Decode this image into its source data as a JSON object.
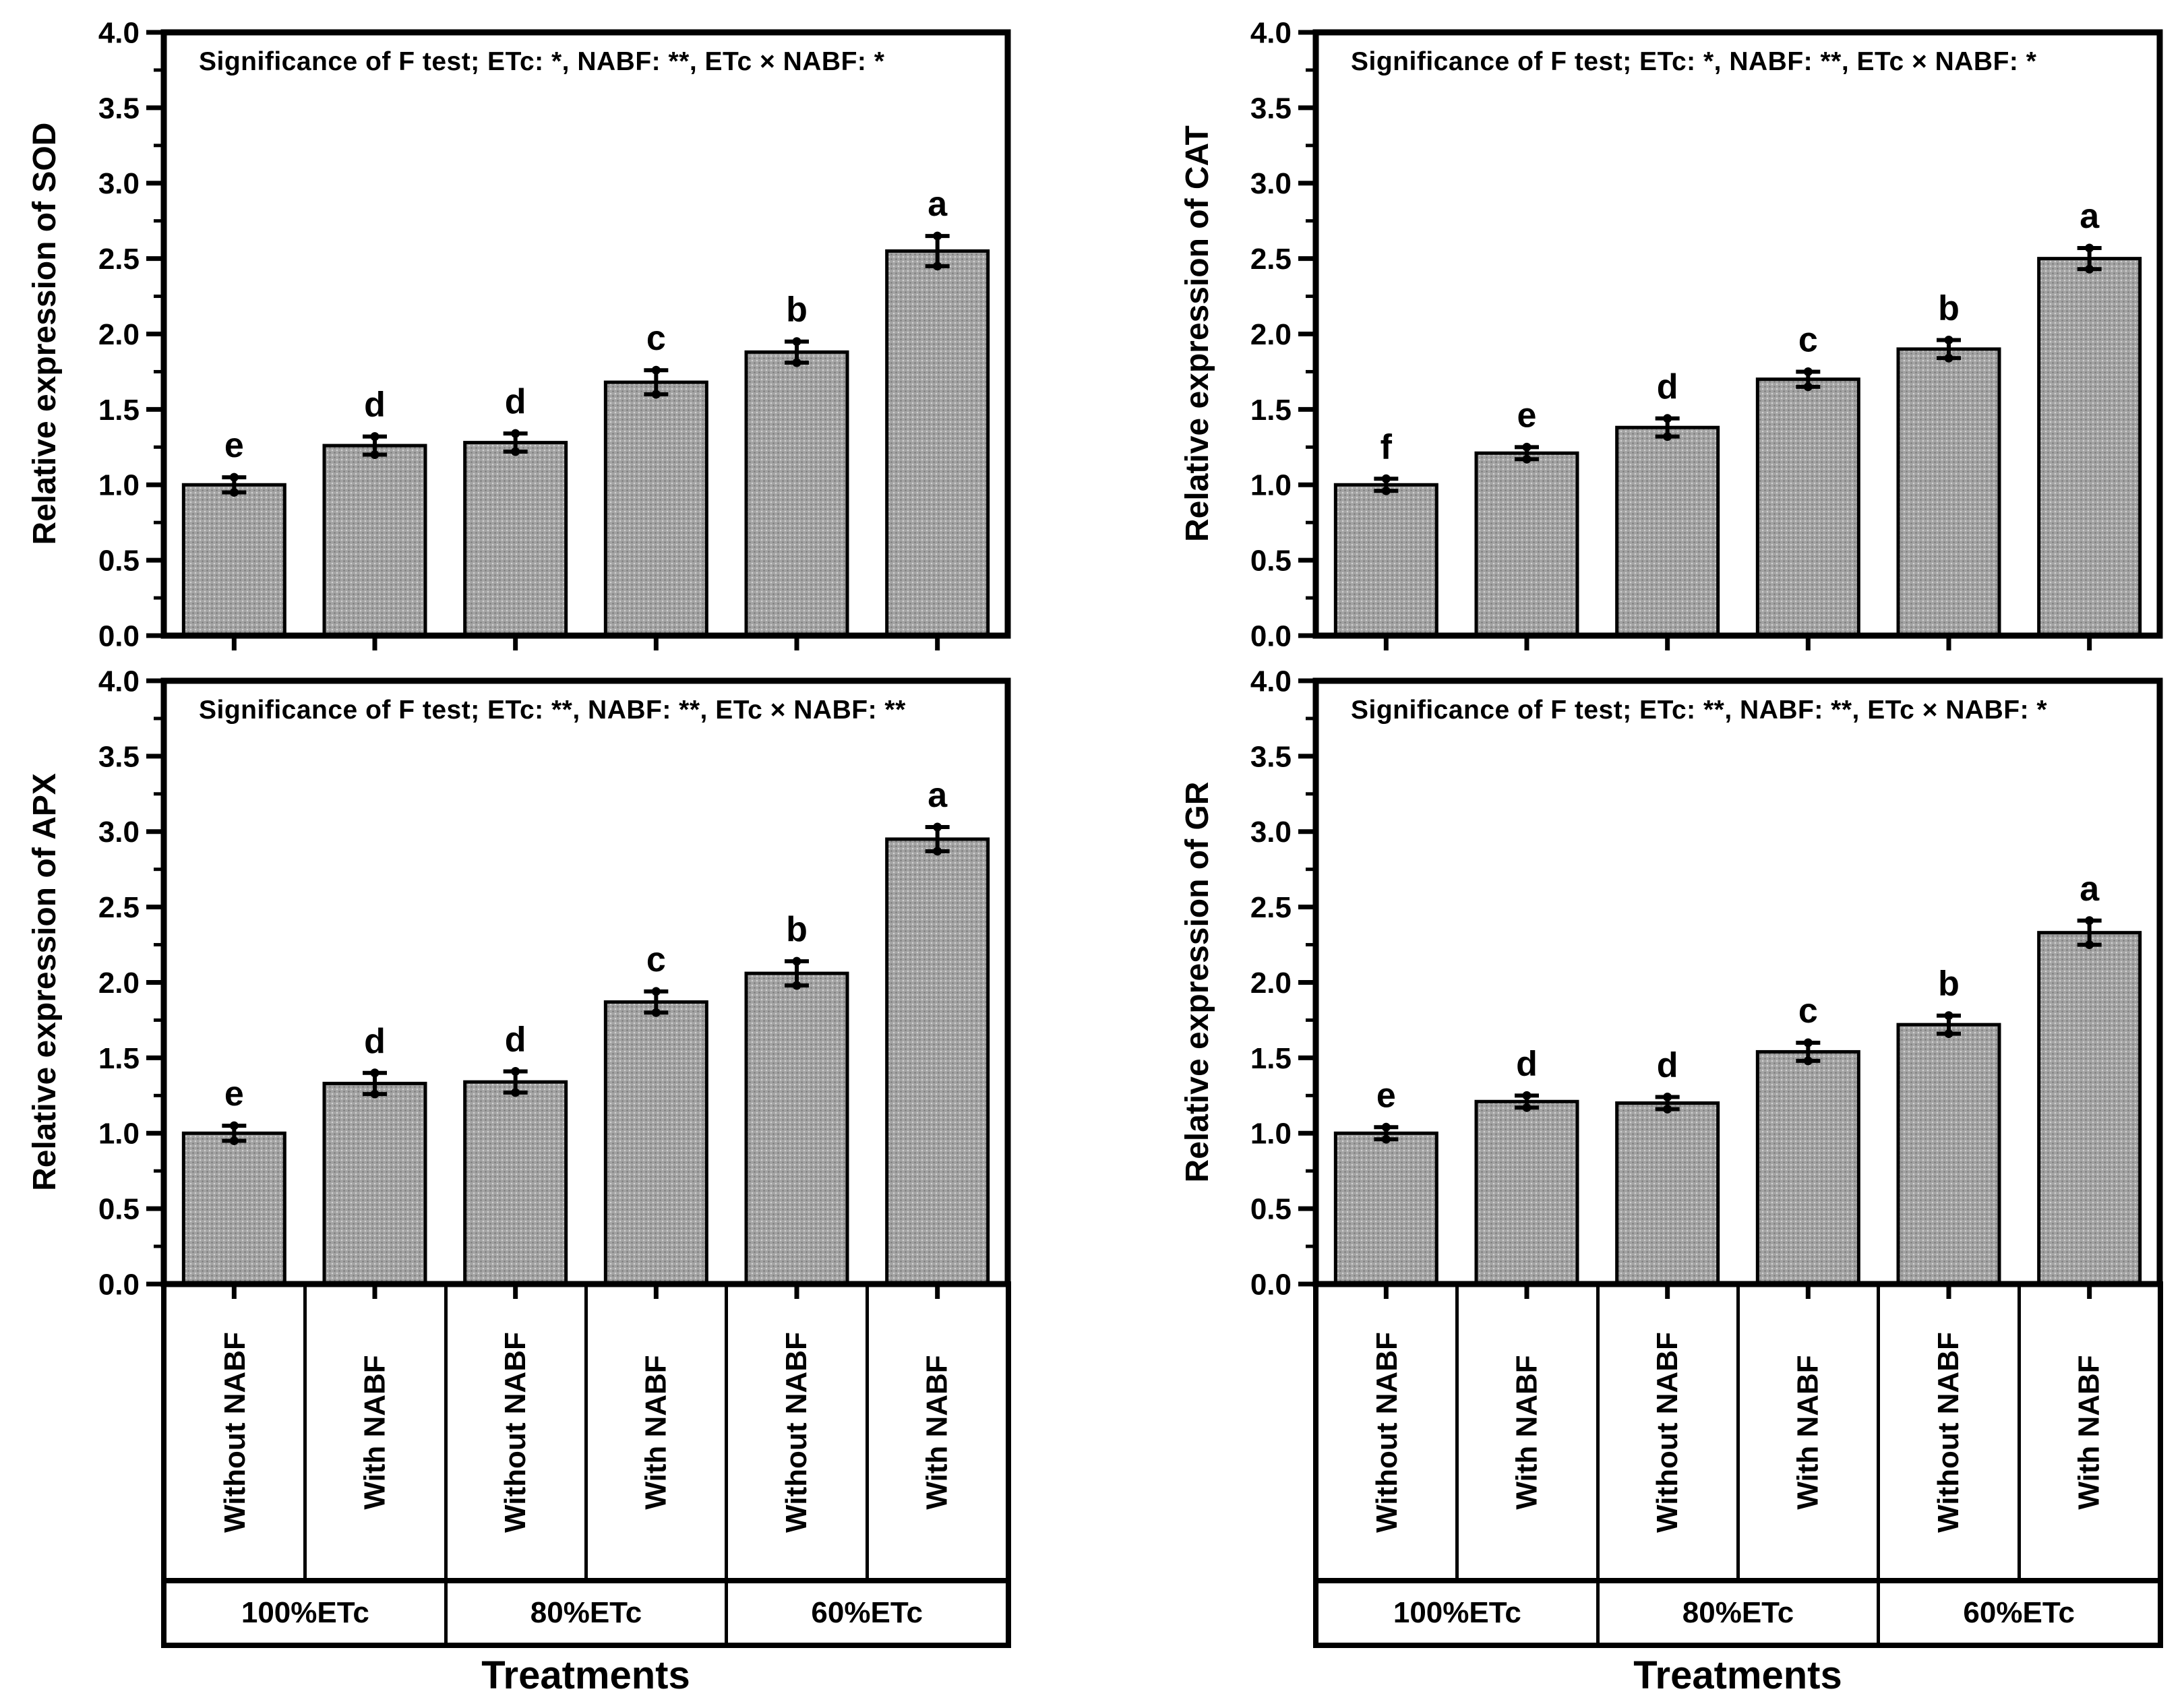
{
  "figure": {
    "x_axis_title": "Treatments",
    "bar_fill_color": "#a3a3a3",
    "bar_border_color": "#000000",
    "y_axis": {
      "min": 0,
      "max": 4,
      "major_step": 0.5,
      "minor_step": 0.25,
      "tick_labels": [
        "0.0",
        "0.5",
        "1.0",
        "1.5",
        "2.0",
        "2.5",
        "3.0",
        "3.5",
        "4.0"
      ]
    },
    "bar_labels": [
      "Without NABF",
      "With NABF",
      "Without NABF",
      "With NABF",
      "Without NABF",
      "With NABF"
    ],
    "group_labels": [
      "100%ETc",
      "80%ETc",
      "60%ETc"
    ]
  },
  "chart_data": [
    {
      "type": "bar",
      "id": "sod",
      "ylabel": "Relative expression of SOD",
      "xlabel": "Treatments",
      "significance": "Significance of F test; ETc: *, NABF: **, ETc × NABF: *",
      "categories": [
        "Without NABF",
        "With NABF",
        "Without NABF",
        "With NABF",
        "Without NABF",
        "With NABF"
      ],
      "group_labels": [
        "100%ETc",
        "80%ETc",
        "60%ETc"
      ],
      "values": [
        1.0,
        1.26,
        1.28,
        1.68,
        1.88,
        2.55
      ],
      "errors": [
        0.05,
        0.06,
        0.06,
        0.08,
        0.07,
        0.1
      ],
      "sig_letters": [
        "e",
        "d",
        "d",
        "c",
        "b",
        "a"
      ],
      "ylim": [
        0,
        4
      ],
      "grid": false
    },
    {
      "type": "bar",
      "id": "cat",
      "ylabel": "Relative expression of CAT",
      "xlabel": "Treatments",
      "significance": "Significance of F test; ETc: *, NABF: **, ETc × NABF: *",
      "categories": [
        "Without NABF",
        "With NABF",
        "Without NABF",
        "With NABF",
        "Without NABF",
        "With NABF"
      ],
      "group_labels": [
        "100%ETc",
        "80%ETc",
        "60%ETc"
      ],
      "values": [
        1.0,
        1.21,
        1.38,
        1.7,
        1.9,
        2.5
      ],
      "errors": [
        0.04,
        0.04,
        0.06,
        0.05,
        0.06,
        0.07
      ],
      "sig_letters": [
        "f",
        "e",
        "d",
        "c",
        "b",
        "a"
      ],
      "ylim": [
        0,
        4
      ],
      "grid": false
    },
    {
      "type": "bar",
      "id": "apx",
      "ylabel": "Relative expression of APX",
      "xlabel": "Treatments",
      "significance": "Significance of F test; ETc: **, NABF: **, ETc × NABF: **",
      "categories": [
        "Without NABF",
        "With NABF",
        "Without NABF",
        "With NABF",
        "Without NABF",
        "With NABF"
      ],
      "group_labels": [
        "100%ETc",
        "80%ETc",
        "60%ETc"
      ],
      "values": [
        1.0,
        1.33,
        1.34,
        1.87,
        2.06,
        2.95
      ],
      "errors": [
        0.05,
        0.07,
        0.07,
        0.07,
        0.08,
        0.08
      ],
      "sig_letters": [
        "e",
        "d",
        "d",
        "c",
        "b",
        "a"
      ],
      "ylim": [
        0,
        4
      ],
      "grid": false
    },
    {
      "type": "bar",
      "id": "gr",
      "ylabel": "Relative expression of GR",
      "xlabel": "Treatments",
      "significance": "Significance of F test; ETc: **, NABF: **, ETc × NABF: *",
      "categories": [
        "Without NABF",
        "With NABF",
        "Without NABF",
        "With NABF",
        "Without NABF",
        "With NABF"
      ],
      "group_labels": [
        "100%ETc",
        "80%ETc",
        "60%ETc"
      ],
      "values": [
        1.0,
        1.21,
        1.2,
        1.54,
        1.72,
        2.33
      ],
      "errors": [
        0.04,
        0.04,
        0.04,
        0.06,
        0.06,
        0.08
      ],
      "sig_letters": [
        "e",
        "d",
        "d",
        "c",
        "b",
        "a"
      ],
      "ylim": [
        0,
        4
      ],
      "grid": false
    }
  ]
}
